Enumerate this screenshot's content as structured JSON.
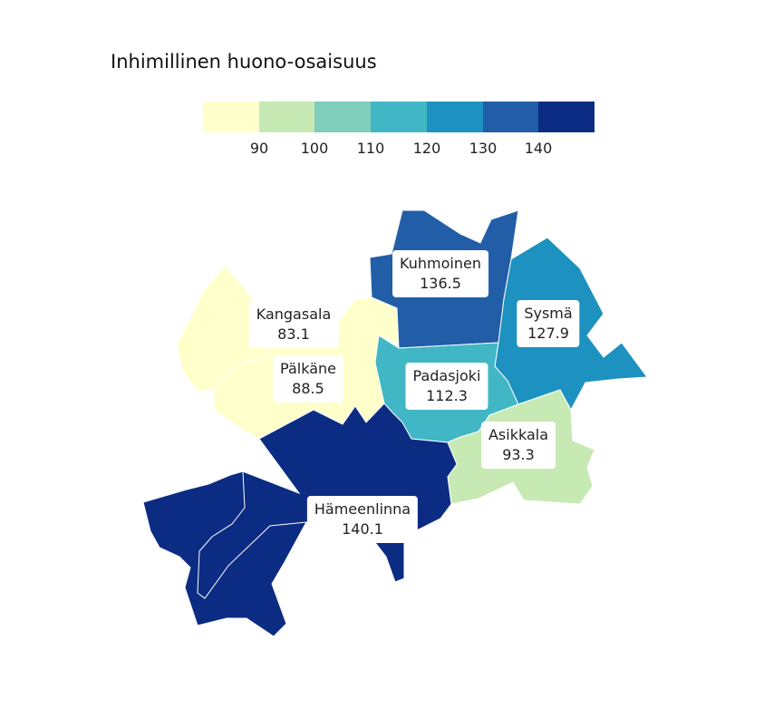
{
  "title": "Inhimillinen huono-osaisuus",
  "legend": {
    "colors": [
      "#ffffcc",
      "#c7e9b4",
      "#7fcdbb",
      "#41b6c4",
      "#1d91c0",
      "#225ea8",
      "#0c2c84"
    ],
    "ticks": [
      "90",
      "100",
      "110",
      "120",
      "130",
      "140"
    ]
  },
  "regions": [
    {
      "id": "kangasala",
      "name": "Kangasala",
      "value": "83.1",
      "color": "#ffffcc"
    },
    {
      "id": "palkane",
      "name": "Pälkäne",
      "value": "88.5",
      "color": "#ffffcc"
    },
    {
      "id": "kuhmoinen",
      "name": "Kuhmoinen",
      "value": "136.5",
      "color": "#225ea8"
    },
    {
      "id": "sysma",
      "name": "Sysmä",
      "value": "127.9",
      "color": "#1d91c0"
    },
    {
      "id": "padasjoki",
      "name": "Padasjoki",
      "value": "112.3",
      "color": "#41b6c4"
    },
    {
      "id": "asikkala",
      "name": "Asikkala",
      "value": "93.3",
      "color": "#c7e9b4"
    },
    {
      "id": "hameenlinna",
      "name": "Hämeenlinna",
      "value": "140.1",
      "color": "#0c2c84"
    }
  ]
}
